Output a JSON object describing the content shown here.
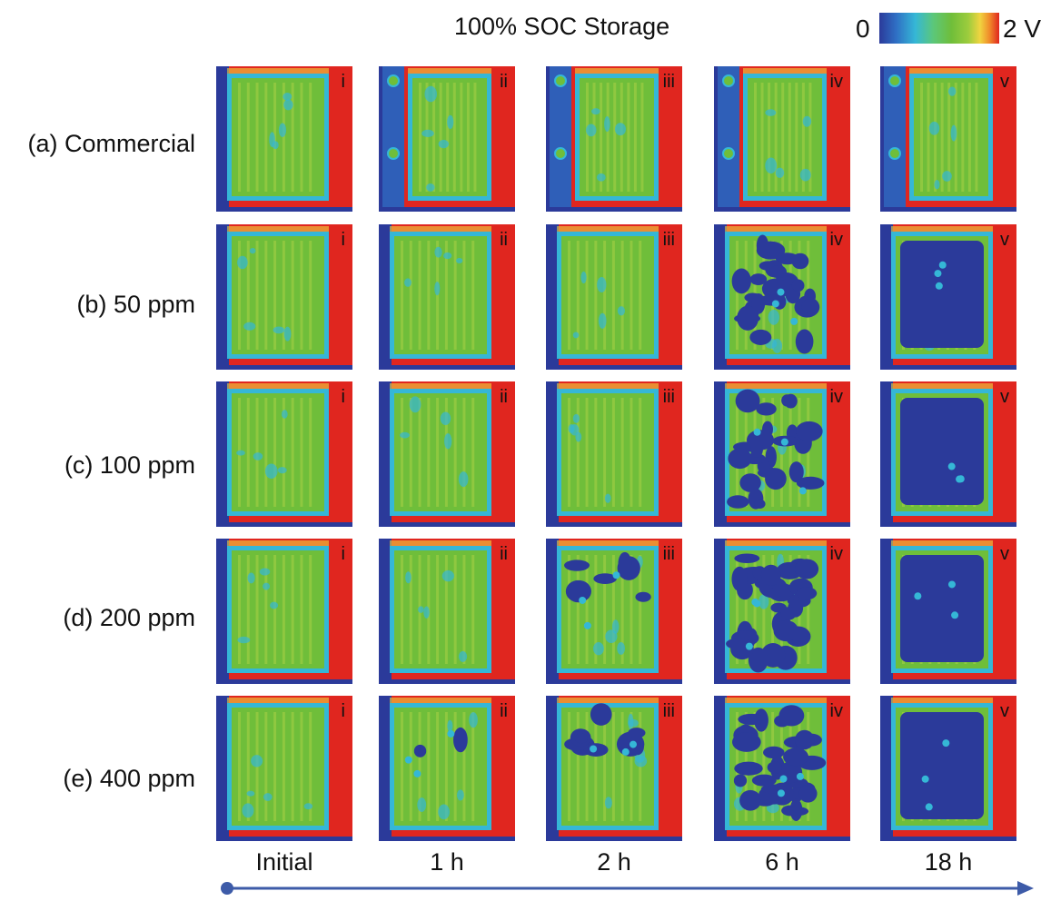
{
  "figure": {
    "title": "100% SOC Storage",
    "colorbar": {
      "min_label": "0",
      "max_label": "2 V",
      "colors": [
        "#2b3a9a",
        "#35b7d6",
        "#6fbe3a",
        "#f0d440",
        "#e0261f"
      ]
    },
    "rows": [
      {
        "label": "(a) Commercial",
        "depletion": [
          0,
          0,
          0,
          0,
          0
        ]
      },
      {
        "label": "(b) 50 ppm",
        "depletion": [
          0,
          0,
          0,
          0.65,
          0.95
        ]
      },
      {
        "label": "(c) 100 ppm",
        "depletion": [
          0,
          0,
          0,
          0.6,
          0.95
        ]
      },
      {
        "label": "(d) 200 ppm",
        "depletion": [
          0,
          0,
          0.15,
          0.8,
          0.97
        ]
      },
      {
        "label": "(e) 400 ppm",
        "depletion": [
          0,
          0.05,
          0.25,
          0.85,
          0.97
        ]
      }
    ],
    "columns": [
      "Initial",
      "1 h",
      "2 h",
      "6 h",
      "18 h"
    ],
    "numerals": [
      "i",
      "ii",
      "iii",
      "iv",
      "v"
    ]
  }
}
